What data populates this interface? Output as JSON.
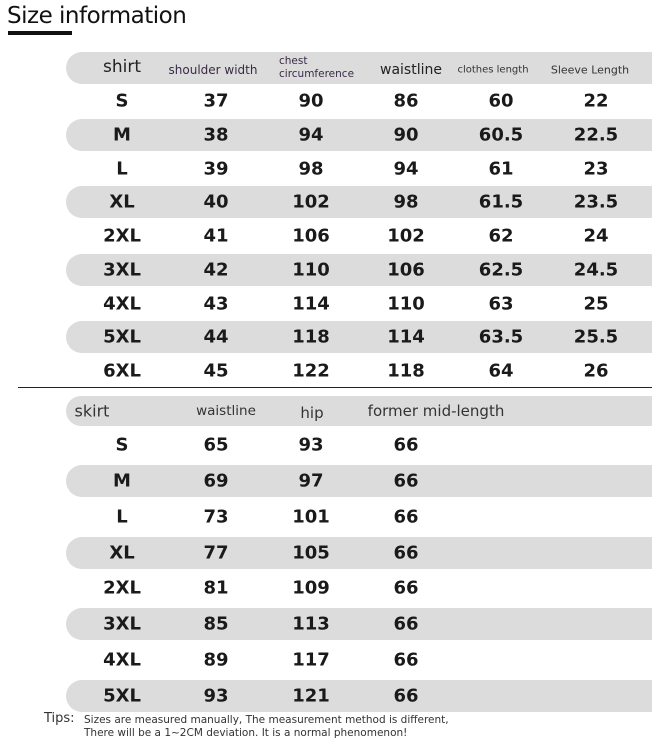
{
  "title": "Size information",
  "shirt": {
    "headers": [
      "shirt",
      "shoulder width",
      "chest circumference",
      "waistline",
      "clothes length",
      "Sleeve Length"
    ],
    "rows": [
      [
        "S",
        "37",
        "90",
        "86",
        "60",
        "22"
      ],
      [
        "M",
        "38",
        "94",
        "90",
        "60.5",
        "22.5"
      ],
      [
        "L",
        "39",
        "98",
        "94",
        "61",
        "23"
      ],
      [
        "XL",
        "40",
        "102",
        "98",
        "61.5",
        "23.5"
      ],
      [
        "2XL",
        "41",
        "106",
        "102",
        "62",
        "24"
      ],
      [
        "3XL",
        "42",
        "110",
        "106",
        "62.5",
        "24.5"
      ],
      [
        "4XL",
        "43",
        "114",
        "110",
        "63",
        "25"
      ],
      [
        "5XL",
        "44",
        "118",
        "114",
        "63.5",
        "25.5"
      ],
      [
        "6XL",
        "45",
        "122",
        "118",
        "64",
        "26"
      ]
    ]
  },
  "skirt": {
    "headers": [
      "skirt",
      "waistline",
      "hip",
      "former mid-length"
    ],
    "rows": [
      [
        "S",
        "65",
        "93",
        "66"
      ],
      [
        "M",
        "69",
        "97",
        "66"
      ],
      [
        "L",
        "73",
        "101",
        "66"
      ],
      [
        "XL",
        "77",
        "105",
        "66"
      ],
      [
        "2XL",
        "81",
        "109",
        "66"
      ],
      [
        "3XL",
        "85",
        "113",
        "66"
      ],
      [
        "4XL",
        "89",
        "117",
        "66"
      ],
      [
        "5XL",
        "93",
        "121",
        "66"
      ]
    ]
  },
  "tips": {
    "label": "Tips:",
    "line1": "Sizes are measured manually, The measurement method is different,",
    "line2": "There will be a 1~2CM deviation.  It is a normal phenomenon!"
  },
  "colors": {
    "band": "#dcdcdc",
    "text": "#1a1a1a"
  }
}
